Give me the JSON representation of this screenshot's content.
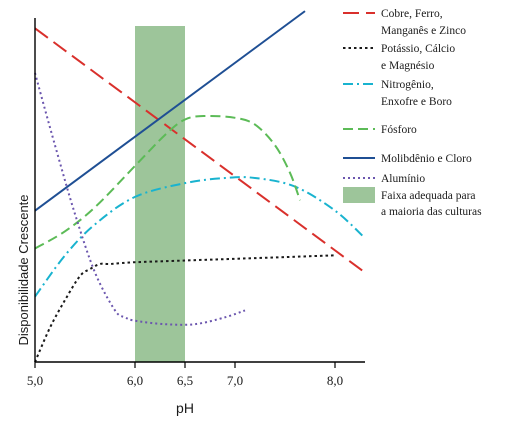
{
  "chart_data": {
    "type": "line",
    "xlabel": "pH",
    "ylabel": "Disponibilidade Crescente",
    "xlim": [
      5.0,
      8.3
    ],
    "ylim": [
      0,
      100
    ],
    "xticks": [
      {
        "value": 5.0,
        "label": "5,0"
      },
      {
        "value": 6.0,
        "label": "6,0"
      },
      {
        "value": 6.5,
        "label": "6,5"
      },
      {
        "value": 7.0,
        "label": "7,0"
      },
      {
        "value": 8.0,
        "label": "8,0"
      }
    ],
    "band": {
      "x0": 6.0,
      "x1": 6.5,
      "label": "Faixa adequada para\na maioria das culturas",
      "color": "#9dc59a"
    },
    "series": [
      {
        "name": "Cobre, Ferro,\nManganês e Zinco",
        "color": "#d9302c",
        "dash": "16,7",
        "x": [
          5.0,
          8.3
        ],
        "y": [
          97,
          26
        ]
      },
      {
        "name": "Potássio, Cálcio\ne Magnésio",
        "color": "#1a1a1a",
        "dash": "2.5,3",
        "x": [
          5.0,
          5.15,
          5.3,
          5.45,
          5.55,
          5.65,
          5.75,
          6.0,
          6.5,
          7.0,
          7.5,
          8.0
        ],
        "y": [
          0,
          10,
          18,
          25,
          27,
          28.5,
          28.5,
          29,
          29.5,
          30,
          30.5,
          31
        ]
      },
      {
        "name": "Nitrogênio,\nEnxofre e Boro",
        "color": "#19b3cf",
        "dash": "10,4,2,4",
        "x": [
          5.0,
          5.3,
          5.6,
          6.0,
          6.5,
          6.9,
          7.2,
          7.6,
          8.0,
          8.3
        ],
        "y": [
          19,
          31,
          40,
          48,
          52,
          53.5,
          53.5,
          51,
          44,
          36
        ]
      },
      {
        "name": "Fósforo",
        "color": "#5cbb57",
        "dash": "10,5",
        "x": [
          5.0,
          5.3,
          5.6,
          6.0,
          6.3,
          6.5,
          6.7,
          7.0,
          7.2,
          7.4,
          7.55,
          7.65
        ],
        "y": [
          33,
          38,
          45,
          57,
          66,
          70.5,
          71.5,
          71,
          69,
          63,
          55,
          47
        ]
      },
      {
        "name": "Molibdênio e Cloro",
        "color": "#1f4f94",
        "dash": "",
        "x": [
          5.0,
          7.7
        ],
        "y": [
          44,
          102
        ]
      },
      {
        "name": "Alumínio",
        "color": "#6b56ae",
        "dash": "2,3",
        "x": [
          5.0,
          5.2,
          5.4,
          5.6,
          5.8,
          5.9,
          6.0,
          6.3,
          6.6,
          6.9,
          7.1
        ],
        "y": [
          84,
          63,
          43,
          26,
          15,
          13,
          12,
          11,
          11,
          13,
          15
        ]
      }
    ],
    "legend_band_label": "Faixa adequada para\na maioria das culturas",
    "legend_position": "top-right"
  }
}
